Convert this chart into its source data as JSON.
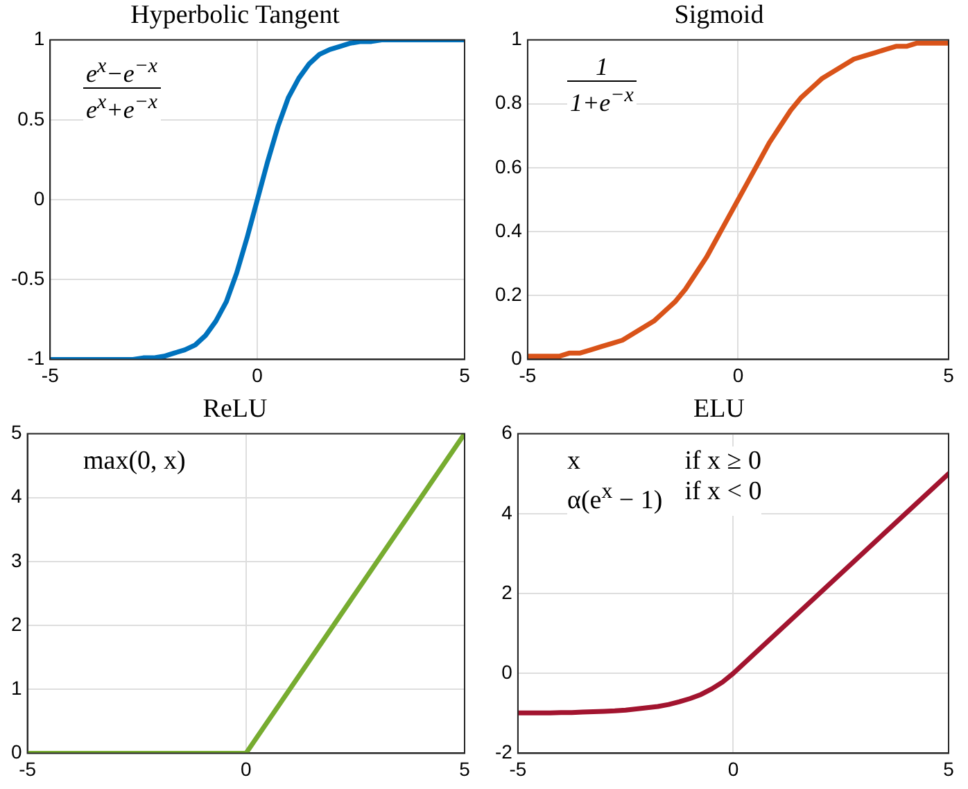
{
  "chart_data": [
    {
      "type": "line",
      "title": "Hyperbolic Tangent",
      "annotations": [
        "e$^{x}$−e$^{−x}$",
        "e$^{x}$+e$^{−x}$"
      ],
      "x": [
        -5,
        -4.75,
        -4.5,
        -4.25,
        -4,
        -3.75,
        -3.5,
        -3.25,
        -3,
        -2.75,
        -2.5,
        -2.25,
        -2,
        -1.75,
        -1.5,
        -1.25,
        -1,
        -0.75,
        -0.5,
        -0.25,
        0,
        0.25,
        0.5,
        0.75,
        1,
        1.25,
        1.5,
        1.75,
        2,
        2.25,
        2.5,
        2.75,
        3,
        3.25,
        3.5,
        3.75,
        4,
        4.25,
        4.5,
        4.75,
        5
      ],
      "series": [
        {
          "color": "#0072bd",
          "values": [
            -1,
            -1,
            -1,
            -1,
            -1,
            -1,
            -1,
            -1,
            -1,
            -0.99,
            -0.99,
            -0.98,
            -0.96,
            -0.94,
            -0.91,
            -0.85,
            -0.76,
            -0.64,
            -0.46,
            -0.24,
            0,
            0.24,
            0.46,
            0.64,
            0.76,
            0.85,
            0.91,
            0.94,
            0.96,
            0.98,
            0.99,
            0.99,
            1,
            1,
            1,
            1,
            1,
            1,
            1,
            1,
            1
          ]
        }
      ],
      "xlim": [
        -5,
        5
      ],
      "xticks": [
        -5,
        0,
        5
      ],
      "ylim": [
        -1,
        1
      ],
      "yticks": [
        -1,
        -0.5,
        0,
        0.5,
        1
      ],
      "grid": true
    },
    {
      "type": "line",
      "title": "Sigmoid",
      "annotations": [
        "1",
        "1+e$^{−x}$"
      ],
      "x": [
        -5,
        -4.75,
        -4.5,
        -4.25,
        -4,
        -3.75,
        -3.5,
        -3.25,
        -3,
        -2.75,
        -2.5,
        -2.25,
        -2,
        -1.75,
        -1.5,
        -1.25,
        -1,
        -0.75,
        -0.5,
        -0.25,
        0,
        0.25,
        0.5,
        0.75,
        1,
        1.25,
        1.5,
        1.75,
        2,
        2.25,
        2.5,
        2.75,
        3,
        3.25,
        3.5,
        3.75,
        4,
        4.25,
        4.5,
        4.75,
        5
      ],
      "series": [
        {
          "color": "#d95319",
          "values": [
            0.01,
            0.01,
            0.01,
            0.01,
            0.02,
            0.02,
            0.03,
            0.04,
            0.05,
            0.06,
            0.08,
            0.1,
            0.12,
            0.15,
            0.18,
            0.22,
            0.27,
            0.32,
            0.38,
            0.44,
            0.5,
            0.56,
            0.62,
            0.68,
            0.73,
            0.78,
            0.82,
            0.85,
            0.88,
            0.9,
            0.92,
            0.94,
            0.95,
            0.96,
            0.97,
            0.98,
            0.98,
            0.99,
            0.99,
            0.99,
            0.99
          ]
        }
      ],
      "xlim": [
        -5,
        5
      ],
      "xticks": [
        -5,
        0,
        5
      ],
      "ylim": [
        0,
        1
      ],
      "yticks": [
        0,
        0.2,
        0.4,
        0.6,
        0.8,
        1
      ],
      "grid": true
    },
    {
      "type": "line",
      "title": "ReLU",
      "annotations": [
        "max(0, x)"
      ],
      "x": [
        -5,
        0,
        5
      ],
      "series": [
        {
          "color": "#77ac30",
          "values": [
            0,
            0,
            5
          ]
        }
      ],
      "xlim": [
        -5,
        5
      ],
      "xticks": [
        -5,
        0,
        5
      ],
      "ylim": [
        0,
        5
      ],
      "yticks": [
        0,
        1,
        2,
        3,
        4,
        5
      ],
      "grid": true
    },
    {
      "type": "line",
      "title": "ELU",
      "annotations": [
        "x",
        "if x ≥ 0",
        "α(e$^{x}$ − 1)",
        "if x < 0"
      ],
      "x": [
        -5,
        -4.75,
        -4.5,
        -4.25,
        -4,
        -3.75,
        -3.5,
        -3.25,
        -3,
        -2.75,
        -2.5,
        -2.25,
        -2,
        -1.75,
        -1.5,
        -1.25,
        -1,
        -0.75,
        -0.5,
        -0.25,
        0,
        5
      ],
      "series": [
        {
          "color": "#a2142f",
          "values": [
            -0.99,
            -0.99,
            -0.99,
            -0.99,
            -0.98,
            -0.98,
            -0.97,
            -0.96,
            -0.95,
            -0.94,
            -0.92,
            -0.89,
            -0.86,
            -0.83,
            -0.78,
            -0.71,
            -0.63,
            -0.53,
            -0.39,
            -0.22,
            0,
            5
          ]
        }
      ],
      "xlim": [
        -5,
        5
      ],
      "xticks": [
        -5,
        0,
        5
      ],
      "ylim": [
        -2,
        6
      ],
      "yticks": [
        -2,
        0,
        2,
        4,
        6
      ],
      "grid": true
    }
  ]
}
